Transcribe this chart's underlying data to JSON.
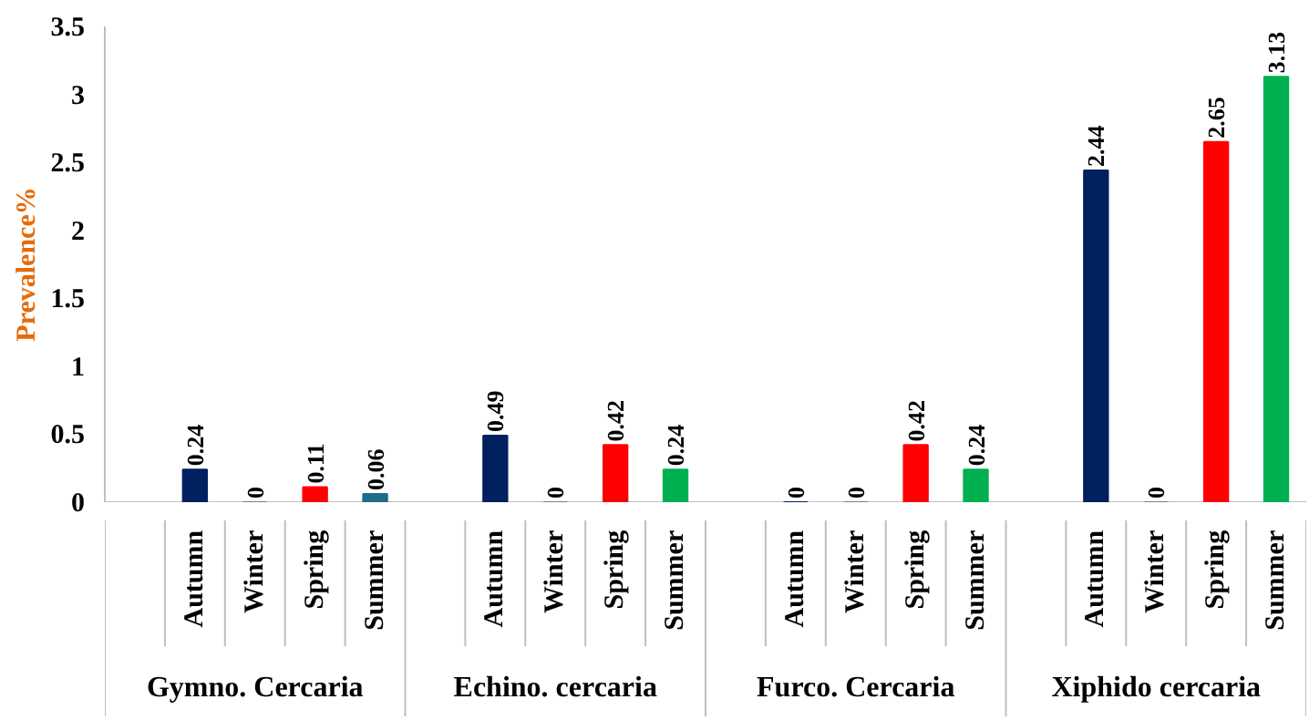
{
  "chart_data": {
    "type": "bar",
    "ylabel": "Prevalence%",
    "categories": [
      null,
      "Autumn",
      "Winter",
      "Spring",
      "Summer",
      null,
      "Autumn",
      "Winter",
      "Spring",
      "Summer",
      null,
      "Autumn",
      "Winter",
      "Spring",
      "Summer",
      null,
      "Autumn",
      "Winter",
      "Spring",
      "Summer"
    ],
    "values": [
      null,
      0.24,
      0,
      0.11,
      0.06,
      null,
      0.49,
      0,
      0.42,
      0.24,
      null,
      0,
      0,
      0.42,
      0.24,
      null,
      2.44,
      0,
      2.65,
      3.13
    ],
    "colors": [
      "#002060",
      "#002060",
      "#7f7f7f",
      "#ff0000",
      "#1f6b8a",
      "#002060",
      "#002060",
      "#7f7f7f",
      "#ff0000",
      "#00b050",
      "#002060",
      "#002060",
      "#7f7f7f",
      "#ff0000",
      "#00b050",
      "#002060",
      "#002060",
      "#7f7f7f",
      "#ff0000",
      "#00b050"
    ],
    "ylim": [
      0,
      3.5
    ],
    "yticks": [
      0,
      0.5,
      1,
      1.5,
      2,
      2.5,
      3,
      3.5
    ],
    "grid": false,
    "data_labels": true,
    "annotations": [
      "Gymno. Cercaria",
      "Echino. cercaria",
      "Furco. Cercaria",
      "Xiphido cercaria"
    ]
  }
}
